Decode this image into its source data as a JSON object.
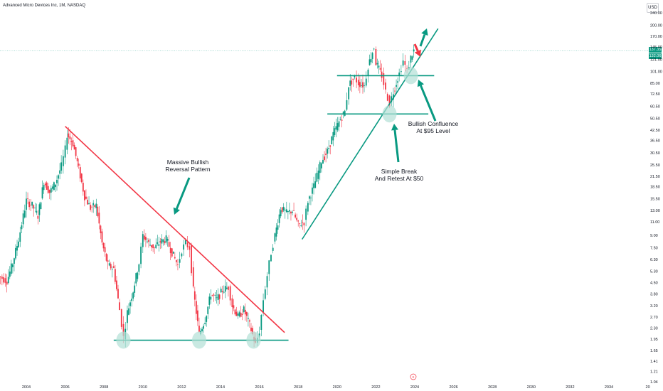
{
  "chart_data": {
    "type": "candlestick",
    "title": "Advanced Micro Devices Inc, 1M, NASDAQ",
    "currency": "USD",
    "scale": "log",
    "y_ticks": [
      240,
      200,
      170,
      145,
      121,
      101,
      85,
      72.5,
      60.5,
      50.5,
      42.5,
      36.5,
      30.5,
      25.5,
      21.5,
      18.5,
      15.5,
      13,
      11,
      9,
      7.5,
      6.3,
      5.3,
      4.5,
      3.8,
      3.2,
      2.7,
      2.3,
      1.95,
      1.65,
      1.41,
      1.21,
      1.04
    ],
    "y_tick_labels": [
      "240.00",
      "200.00",
      "170.00",
      "145.00",
      "121.00",
      "101.00",
      "85.00",
      "72.50",
      "60.50",
      "50.50",
      "42.50",
      "36.50",
      "30.50",
      "25.50",
      "21.50",
      "18.50",
      "15.50",
      "13.00",
      "11.00",
      "9.00",
      "7.50",
      "6.30",
      "5.30",
      "4.50",
      "3.80",
      "3.20",
      "2.70",
      "2.30",
      "1.95",
      "1.65",
      "1.41",
      "1.21",
      "1.04"
    ],
    "x_ticks": [
      "2004",
      "2006",
      "2008",
      "2010",
      "2012",
      "2014",
      "2016",
      "2018",
      "2020",
      "2022",
      "2024",
      "2026",
      "2028",
      "2030",
      "2032",
      "2034",
      "20"
    ],
    "last_price_labels": [
      "137.35",
      "132.06"
    ],
    "current_price": 137.35,
    "monthly_closes": [
      [
        2002.5,
        5.0
      ],
      [
        2003.0,
        4.6
      ],
      [
        2003.3,
        6.0
      ],
      [
        2003.6,
        8.5
      ],
      [
        2004.0,
        15.0
      ],
      [
        2004.3,
        14.0
      ],
      [
        2004.6,
        12.0
      ],
      [
        2004.9,
        20.0
      ],
      [
        2005.2,
        17.0
      ],
      [
        2005.5,
        19.5
      ],
      [
        2005.8,
        25.0
      ],
      [
        2006.0,
        32.0
      ],
      [
        2006.1,
        40.0
      ],
      [
        2006.4,
        35.0
      ],
      [
        2006.7,
        24.0
      ],
      [
        2007.0,
        16.0
      ],
      [
        2007.3,
        13.5
      ],
      [
        2007.6,
        14.0
      ],
      [
        2007.9,
        8.0
      ],
      [
        2008.2,
        5.8
      ],
      [
        2008.5,
        5.5
      ],
      [
        2008.8,
        3.0
      ],
      [
        2009.0,
        2.0
      ],
      [
        2009.2,
        2.9
      ],
      [
        2009.5,
        4.0
      ],
      [
        2009.8,
        6.0
      ],
      [
        2010.0,
        9.0
      ],
      [
        2010.3,
        8.0
      ],
      [
        2010.6,
        7.5
      ],
      [
        2010.9,
        8.2
      ],
      [
        2011.2,
        8.5
      ],
      [
        2011.5,
        7.0
      ],
      [
        2011.8,
        5.8
      ],
      [
        2012.0,
        7.3
      ],
      [
        2012.2,
        8.0
      ],
      [
        2012.4,
        7.5
      ],
      [
        2012.6,
        4.0
      ],
      [
        2012.9,
        2.1
      ],
      [
        2013.2,
        2.6
      ],
      [
        2013.5,
        3.8
      ],
      [
        2013.8,
        3.5
      ],
      [
        2014.1,
        4.0
      ],
      [
        2014.4,
        4.2
      ],
      [
        2014.6,
        3.2
      ],
      [
        2014.9,
        2.7
      ],
      [
        2015.2,
        3.0
      ],
      [
        2015.5,
        2.4
      ],
      [
        2015.8,
        1.8
      ],
      [
        2016.0,
        2.2
      ],
      [
        2016.2,
        3.5
      ],
      [
        2016.4,
        5.0
      ],
      [
        2016.6,
        7.0
      ],
      [
        2016.8,
        9.0
      ],
      [
        2017.1,
        13.5
      ],
      [
        2017.4,
        12.5
      ],
      [
        2017.7,
        13.0
      ],
      [
        2018.0,
        10.5
      ],
      [
        2018.3,
        11.0
      ],
      [
        2018.5,
        15.0
      ],
      [
        2018.8,
        18.5
      ],
      [
        2019.2,
        27.0
      ],
      [
        2019.5,
        31.0
      ],
      [
        2019.8,
        40.0
      ],
      [
        2020.1,
        48.0
      ],
      [
        2020.4,
        56.0
      ],
      [
        2020.6,
        83.0
      ],
      [
        2020.9,
        92.0
      ],
      [
        2021.1,
        85.0
      ],
      [
        2021.4,
        82.0
      ],
      [
        2021.6,
        110.0
      ],
      [
        2021.9,
        145.0
      ],
      [
        2022.0,
        115.0
      ],
      [
        2022.3,
        95.0
      ],
      [
        2022.5,
        75.0
      ],
      [
        2022.7,
        63.0
      ],
      [
        2022.9,
        75.0
      ],
      [
        2023.2,
        98.0
      ],
      [
        2023.4,
        118.0
      ],
      [
        2023.6,
        102.0
      ],
      [
        2023.8,
        124.0
      ],
      [
        2023.95,
        137.35
      ]
    ],
    "annotations": [
      {
        "text_lines": [
          "Massive Bullish",
          "Reversal Pattern"
        ]
      },
      {
        "text_lines": [
          "Simple Break",
          "And Retest At $50"
        ]
      },
      {
        "text_lines": [
          "Bullish Confluence",
          "At $95 Level"
        ]
      }
    ],
    "trendlines": [
      {
        "name": "descending-resistance",
        "color": "#f23645",
        "from": [
          2006.0,
          45.0
        ],
        "to": [
          2017.3,
          2.15
        ]
      },
      {
        "name": "ascending-support",
        "color": "#089981",
        "from": [
          2018.2,
          8.5
        ],
        "to": [
          2025.2,
          190.0
        ]
      }
    ],
    "horizontal_levels": [
      {
        "name": "support-1.95",
        "price": 1.92,
        "x_from": 2008.5,
        "x_to": 2017.5,
        "color": "#089981"
      },
      {
        "name": "level-50",
        "price": 54.0,
        "x_from": 2019.5,
        "x_to": 2024.7,
        "color": "#089981"
      },
      {
        "name": "level-95",
        "price": 95.0,
        "x_from": 2020.0,
        "x_to": 2025.0,
        "color": "#089981"
      }
    ],
    "circles": [
      [
        2009.0,
        1.92
      ],
      [
        2012.9,
        1.92
      ],
      [
        2015.7,
        1.92
      ],
      [
        2022.7,
        54.0
      ],
      [
        2023.8,
        95.0
      ]
    ],
    "colors": {
      "up": "#089981",
      "down": "#f23645",
      "circle_fill": "#b2dfd5",
      "arrow": "#089981",
      "red_arrow": "#f23645"
    }
  }
}
